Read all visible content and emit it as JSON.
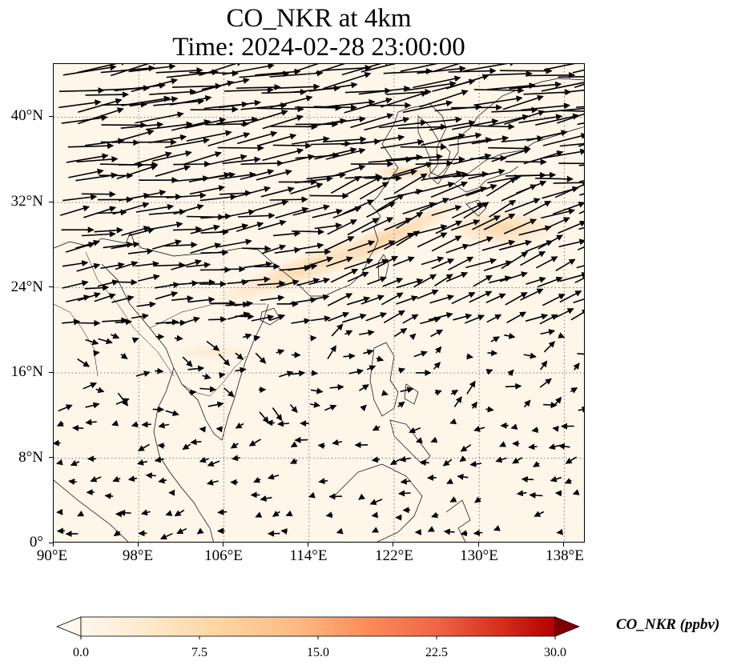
{
  "title": {
    "line1": "CO_NKR at 4km",
    "line2": "Time: 2024-02-28 23:00:00"
  },
  "map": {
    "projection": "PlateCarree",
    "lon_range": [
      90,
      140
    ],
    "lat_range": [
      0,
      45
    ],
    "lon_ticks": [
      "90°E",
      "98°E",
      "106°E",
      "114°E",
      "122°E",
      "130°E",
      "138°E"
    ],
    "lat_ticks": [
      "0°",
      "8°N",
      "16°N",
      "24°N",
      "32°N",
      "40°N"
    ],
    "gridlines": "dotted",
    "features": [
      "coastlines",
      "country borders"
    ],
    "field": "CO_NKR concentration (filled)",
    "overlay": "wind vectors (arrows)",
    "plume_direction": "southwest to northeast along East China Sea"
  },
  "colorbar": {
    "label": "CO_NKR (ppbv)",
    "colormap": "OrRd",
    "range": [
      0,
      30
    ],
    "ticks": [
      "0.0",
      "7.5",
      "15.0",
      "22.5",
      "30.0"
    ],
    "extend": "both"
  }
}
